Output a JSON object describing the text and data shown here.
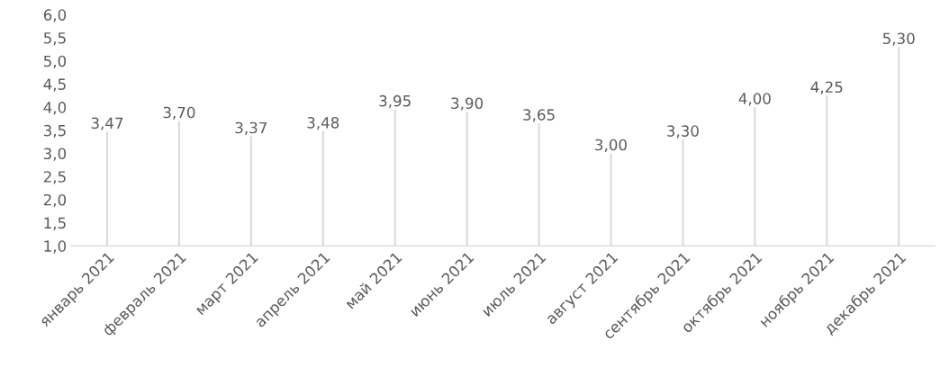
{
  "chart_data": {
    "type": "bar",
    "categories": [
      "январь 2021",
      "февраль 2021",
      "март 2021",
      "апрель 2021",
      "май 2021",
      "июнь 2021",
      "июль 2021",
      "август 2021",
      "сентябрь 2021",
      "октябрь 2021",
      "ноябрь 2021",
      "декабрь 2021"
    ],
    "values": [
      3.47,
      3.7,
      3.37,
      3.48,
      3.95,
      3.9,
      3.65,
      3.0,
      3.3,
      4.0,
      4.25,
      5.3
    ],
    "value_labels": [
      "3,47",
      "3,70",
      "3,37",
      "3,48",
      "3,95",
      "3,90",
      "3,65",
      "3,00",
      "3,30",
      "4,00",
      "4,25",
      "5,30"
    ],
    "color": "#d9d9d9",
    "grid": false,
    "ylim": [
      1.0,
      6.0
    ],
    "yticks": [
      {
        "value": 1.0,
        "label": "1,0"
      },
      {
        "value": 1.5,
        "label": "1,5"
      },
      {
        "value": 2.0,
        "label": "2,0"
      },
      {
        "value": 2.5,
        "label": "2,5"
      },
      {
        "value": 3.0,
        "label": "3,0"
      },
      {
        "value": 3.5,
        "label": "3,5"
      },
      {
        "value": 4.0,
        "label": "4,0"
      },
      {
        "value": 4.5,
        "label": "4,5"
      },
      {
        "value": 5.0,
        "label": "5,0"
      },
      {
        "value": 5.5,
        "label": "5,5"
      },
      {
        "value": 6.0,
        "label": "6,0"
      }
    ]
  }
}
